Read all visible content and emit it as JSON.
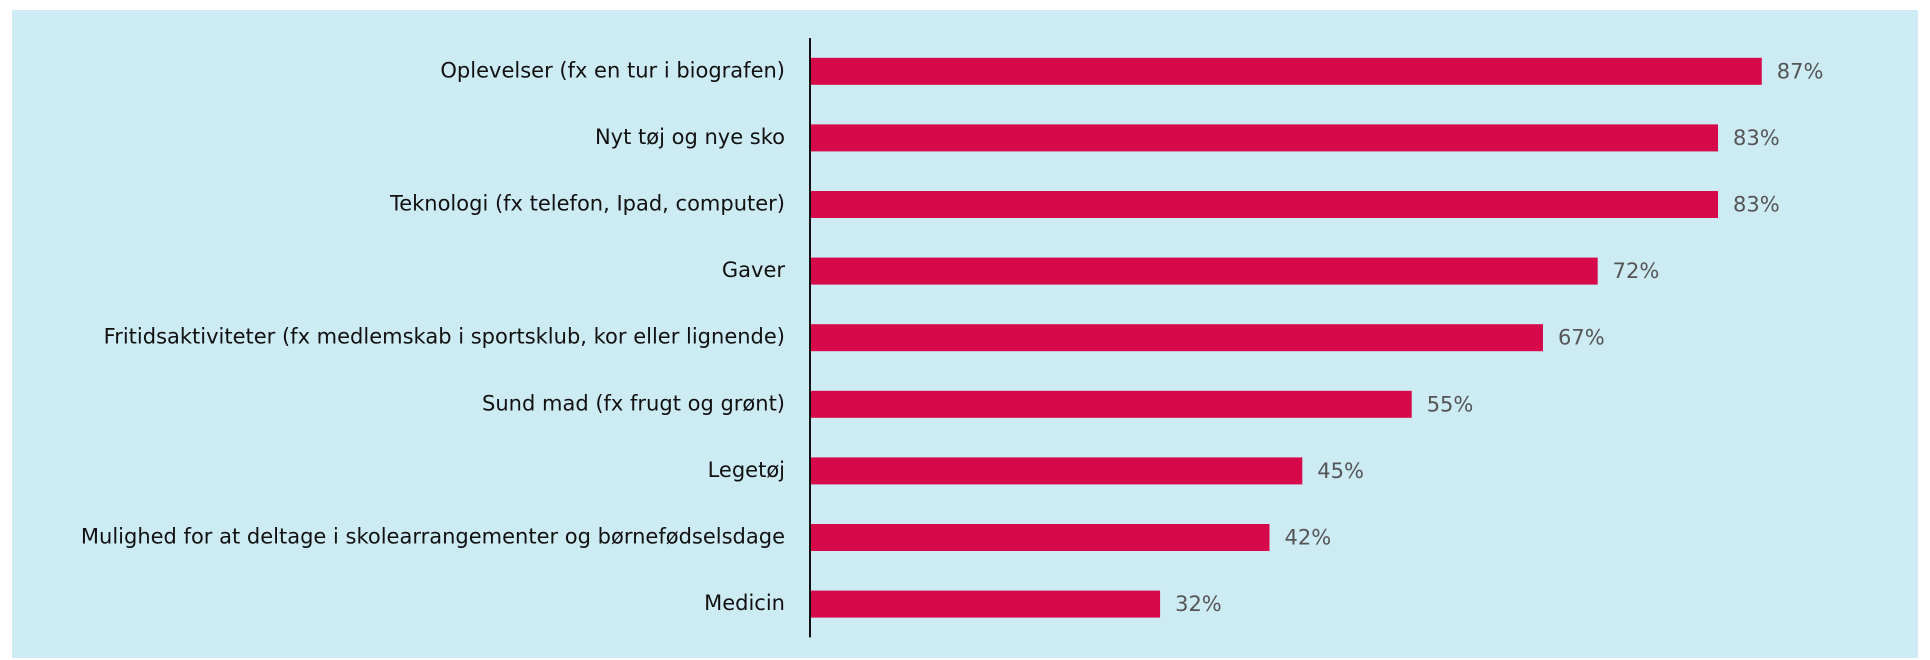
{
  "chart_data": {
    "type": "bar",
    "orientation": "horizontal",
    "categories": [
      "Oplevelser (fx en tur i biografen)",
      "Nyt tøj og nye sko",
      "Teknologi (fx telefon, Ipad, computer)",
      "Gaver",
      "Fritidsaktiviteter (fx medlemskab i sportsklub, kor eller lignende)",
      "Sund mad (fx frugt og grønt)",
      "Legetøj",
      "Mulighed for at deltage i skolearrangementer og børnefødselsdage",
      "Medicin"
    ],
    "values": [
      87,
      83,
      83,
      72,
      67,
      55,
      45,
      42,
      32
    ],
    "value_labels": [
      "87%",
      "83%",
      "83%",
      "72%",
      "67%",
      "55%",
      "45%",
      "42%",
      "32%"
    ],
    "color": "#d6094a",
    "xlim": [
      0,
      100
    ]
  }
}
